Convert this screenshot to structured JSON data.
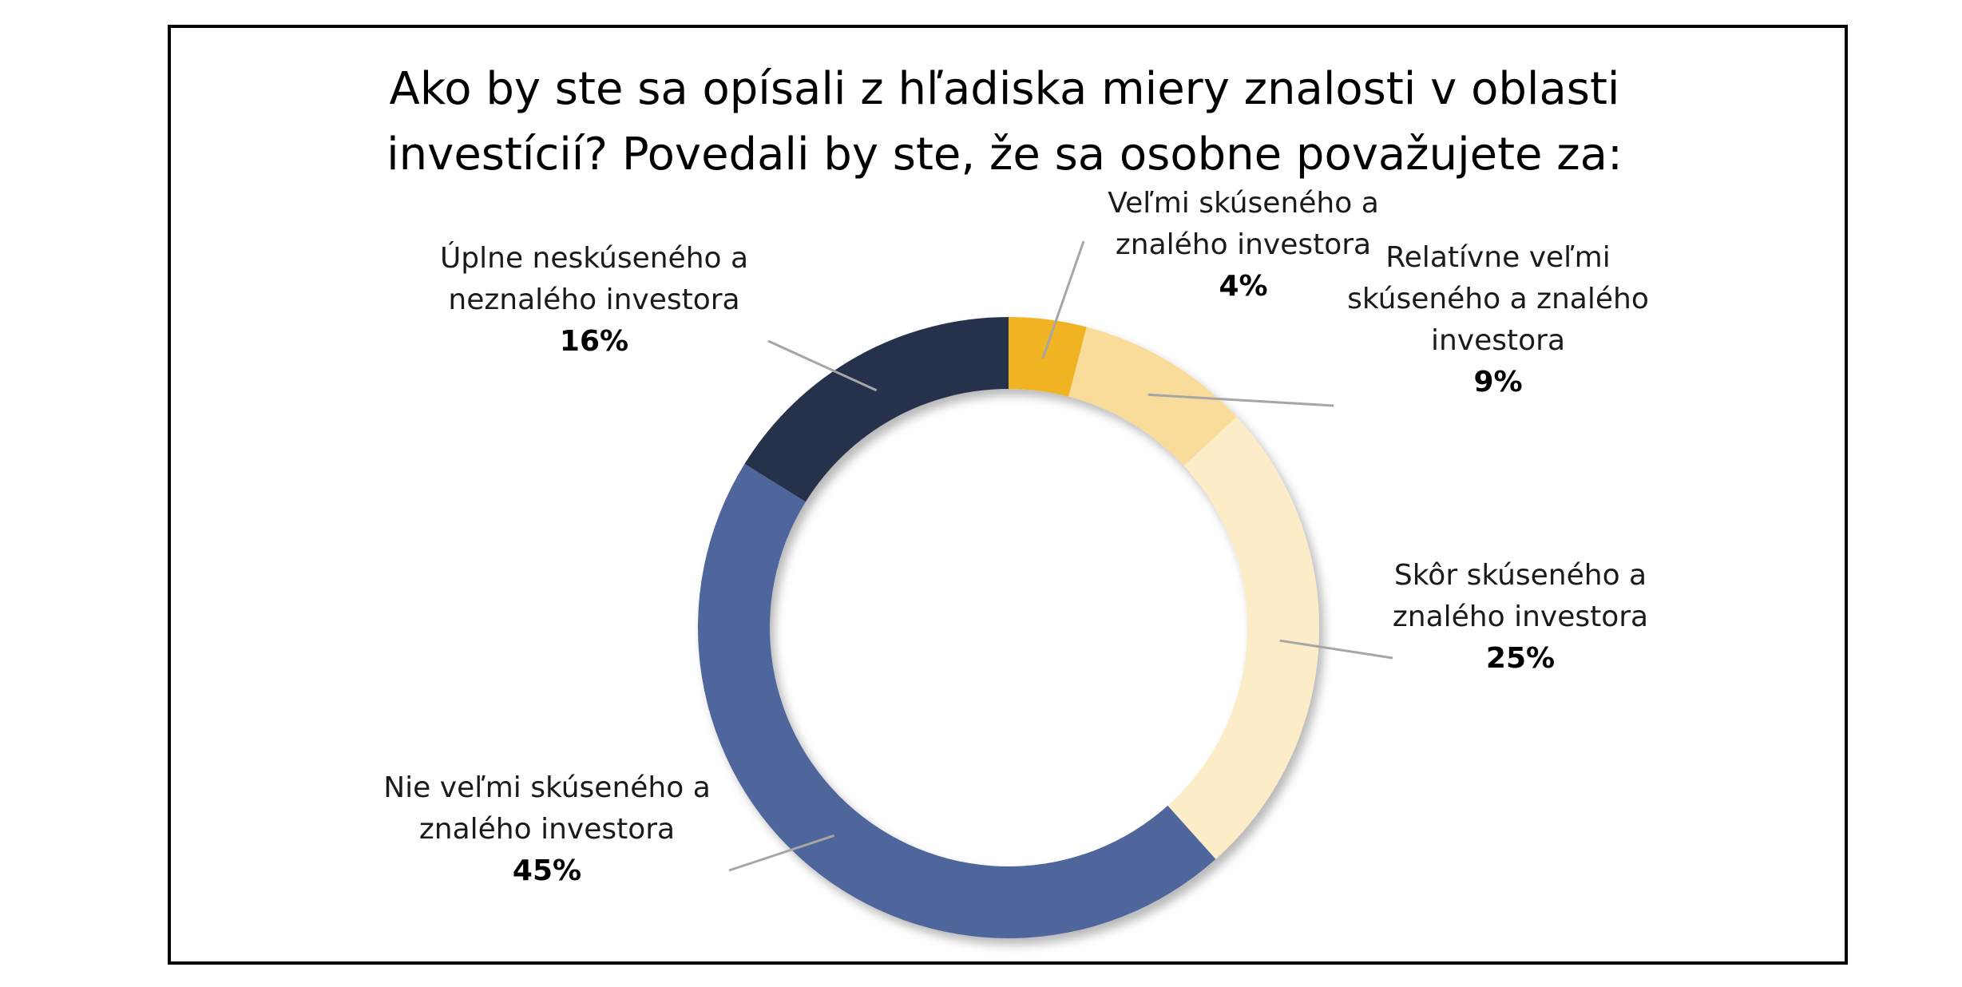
{
  "chart_data": {
    "type": "pie",
    "variant": "donut",
    "title_lines": [
      "Ako by ste sa opísali z hľadiska miery znalosti v oblasti",
      "investícií? Povedali by ste, že sa osobne považujete za:"
    ],
    "slices": [
      {
        "label_lines": [
          "Veľmi skúseného a",
          "znalého investora"
        ],
        "value": 4,
        "value_label": "4%",
        "color": "#F0B323"
      },
      {
        "label_lines": [
          "Relatívne veľmi",
          "skúseného a znalého",
          "investora"
        ],
        "value": 9,
        "value_label": "9%",
        "color": "#F9DC99"
      },
      {
        "label_lines": [
          "Skôr skúseného a",
          "znalého investora"
        ],
        "value": 25,
        "value_label": "25%",
        "color": "#FCEDC8"
      },
      {
        "label_lines": [
          "Nie veľmi skúseného a",
          "znalého investora"
        ],
        "value": 45,
        "value_label": "45%",
        "color": "#50669C"
      },
      {
        "label_lines": [
          "Úplne neskúseného a",
          "neznalého investora"
        ],
        "value": 16,
        "value_label": "16%",
        "color": "#28324C"
      }
    ],
    "start_angle_deg": 0,
    "direction": "clockwise",
    "legend": "none"
  }
}
